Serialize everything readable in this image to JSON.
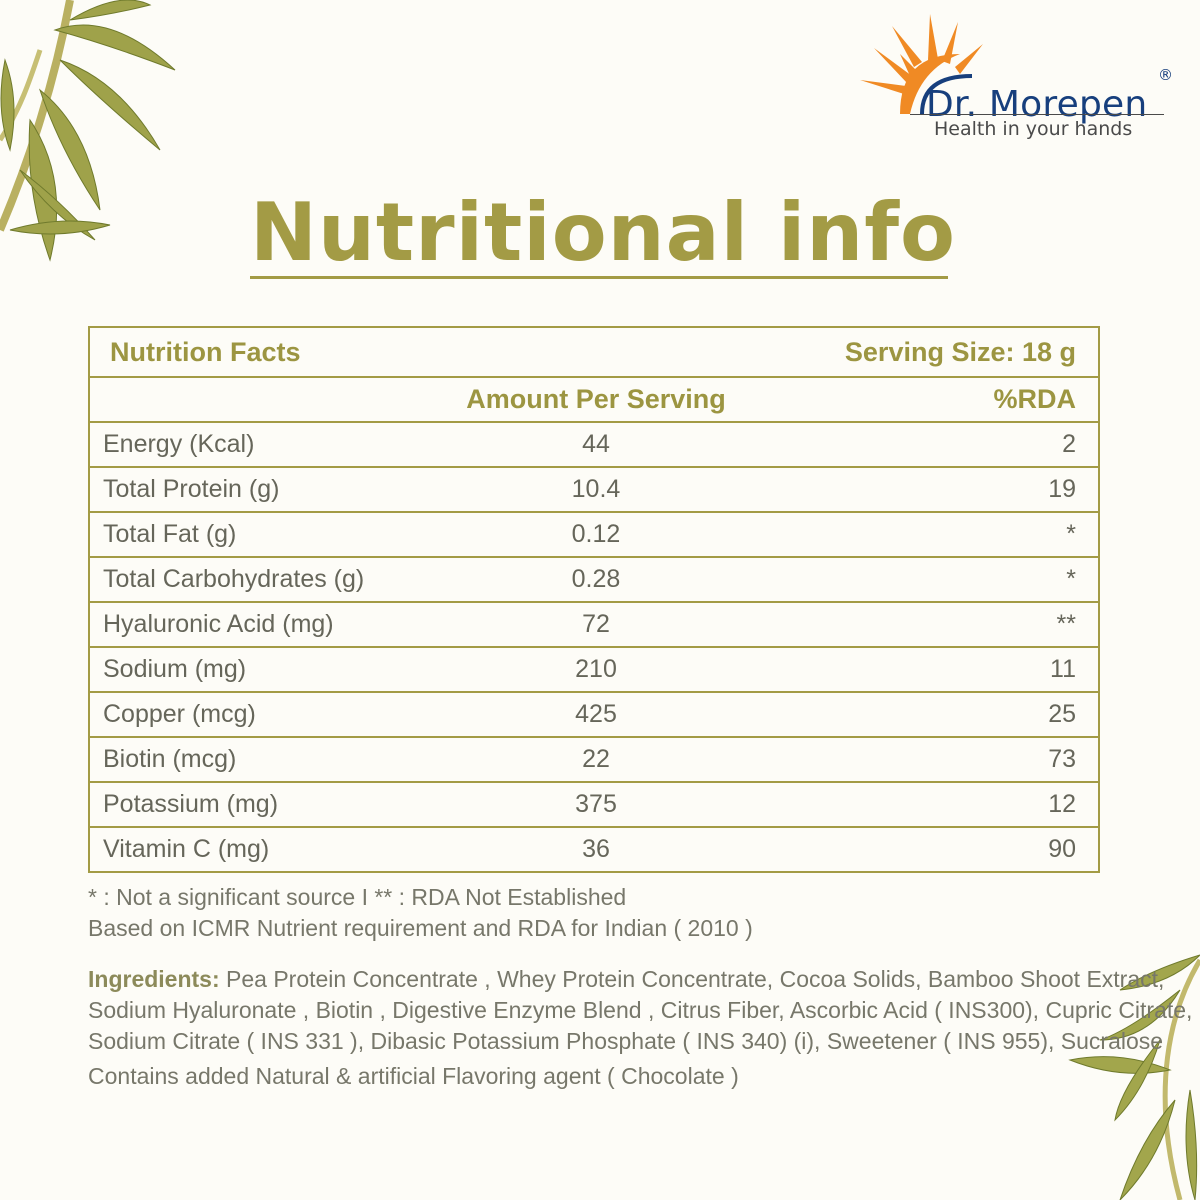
{
  "brand": {
    "name": "Dr. Morepen",
    "registered_mark": "®",
    "tagline": "Health in your hands",
    "colors": {
      "navy": "#173f7d",
      "orange": "#f08a24"
    }
  },
  "page": {
    "title": "Nutritional info",
    "accent_color": "#a39b45"
  },
  "facts": {
    "heading": "Nutrition Facts",
    "serving_size": "Serving Size: 18 g",
    "col_amount": "Amount Per Serving",
    "col_rda": "%RDA",
    "rows": [
      {
        "name": "Energy (Kcal)",
        "amount": "44",
        "rda": "2"
      },
      {
        "name": "Total Protein (g)",
        "amount": "10.4",
        "rda": "19"
      },
      {
        "name": "Total Fat (g)",
        "amount": "0.12",
        "rda": "*"
      },
      {
        "name": "Total Carbohydrates (g)",
        "amount": "0.28",
        "rda": "*"
      },
      {
        "name": "Hyaluronic Acid (mg)",
        "amount": "72",
        "rda": "**"
      },
      {
        "name": "Sodium (mg)",
        "amount": "210",
        "rda": "11"
      },
      {
        "name": "Copper (mcg)",
        "amount": "425",
        "rda": "25"
      },
      {
        "name": "Biotin (mcg)",
        "amount": "22",
        "rda": "73"
      },
      {
        "name": "Potassium (mg)",
        "amount": "375",
        "rda": "12"
      },
      {
        "name": "Vitamin C (mg)",
        "amount": "36",
        "rda": "90"
      }
    ]
  },
  "notes": {
    "legend": "* : Not a significant source I ** : RDA Not Established",
    "basis": "Based on ICMR Nutrient requirement and RDA for Indian ( 2010 )"
  },
  "ingredients": {
    "label": "Ingredients:",
    "line1": " Pea Protein Concentrate , Whey Protein Concentrate, Cocoa Solids,  Bamboo Shoot Extract,",
    "line2": "Sodium Hyaluronate , Biotin , Digestive Enzyme Blend , Citrus Fiber, Ascorbic Acid ( INS300),  Cupric Citrate,",
    "line3": "Sodium Citrate ( INS 331 ), Dibasic Potassium Phosphate ( INS 340) (i), Sweetener ( INS 955), Sucralose",
    "flavour": "Contains added Natural & artificial Flavoring agent ( Chocolate )"
  }
}
